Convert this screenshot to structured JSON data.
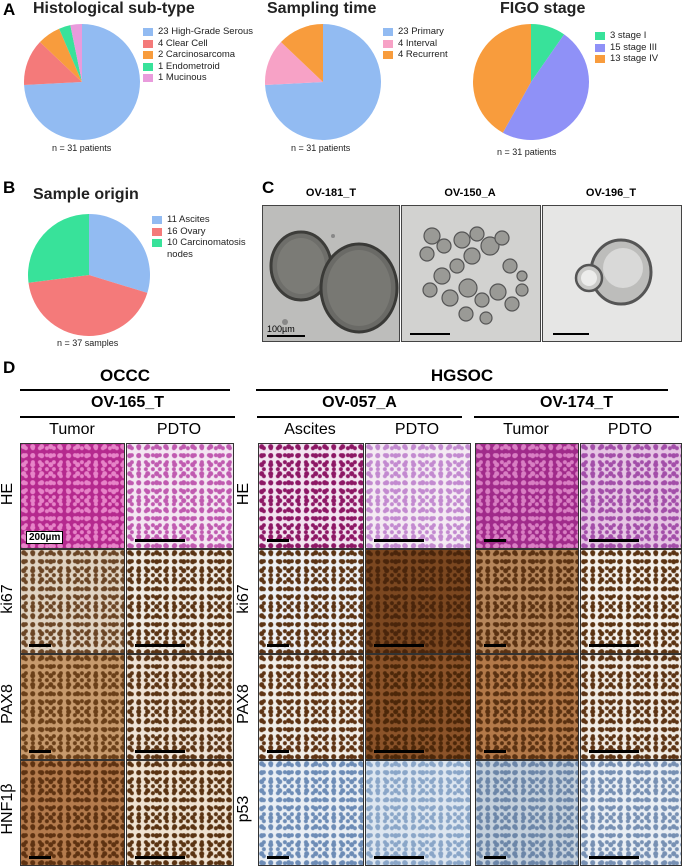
{
  "panelA": {
    "letter": "A",
    "charts": [
      {
        "title": "Histological sub-type",
        "n_label": "n = 31 patients",
        "legend": [
          "23 High-Grade Serous",
          "4 Clear Cell",
          "2 Carcinosarcoma",
          "1 Endometroid",
          "1 Mucinous"
        ],
        "values": [
          23,
          4,
          2,
          1,
          1
        ],
        "colors": [
          "#92BBF2",
          "#F47A7A",
          "#F89C3D",
          "#38E29A",
          "#E99BDC"
        ]
      },
      {
        "title": "Sampling time",
        "n_label": "n = 31 patients",
        "legend": [
          "23 Primary",
          "4 Interval",
          "4 Recurrent"
        ],
        "values": [
          23,
          4,
          4
        ],
        "colors": [
          "#92BBF2",
          "#F7A2C6",
          "#F89C3D"
        ]
      },
      {
        "title": "FIGO stage",
        "n_label": "n = 31 patients",
        "legend": [
          "3 stage I",
          "15 stage III",
          "13 stage IV"
        ],
        "values": [
          3,
          15,
          13
        ],
        "colors": [
          "#38E29A",
          "#8F91F7",
          "#F89C3D"
        ]
      }
    ]
  },
  "panelB": {
    "letter": "B",
    "title": "Sample origin",
    "n_label": "n = 37 samples",
    "legend": [
      "11 Ascites",
      "16 Ovary",
      "10 Carcinomatosis nodes"
    ],
    "values": [
      11,
      16,
      10
    ],
    "colors": [
      "#92BBF2",
      "#F47A7A",
      "#38E29A"
    ]
  },
  "panelC": {
    "letter": "C",
    "labels": [
      "OV-181_T",
      "OV-150_A",
      "OV-196_T"
    ],
    "scale_label": "100µm"
  },
  "panelD": {
    "letter": "D",
    "group1": "OCCC",
    "group2": "HGSOC",
    "samples": [
      "OV-165_T",
      "OV-057_A",
      "OV-174_T"
    ],
    "col_heads": [
      "Tumor",
      "PDTO",
      "Ascites",
      "PDTO",
      "Tumor",
      "PDTO"
    ],
    "row_labels_left": [
      "HE",
      "ki67",
      "PAX8",
      "HNF1β"
    ],
    "row_labels_right": [
      "HE",
      "ki67",
      "PAX8",
      "p53"
    ],
    "scale_label": "200µm"
  }
}
